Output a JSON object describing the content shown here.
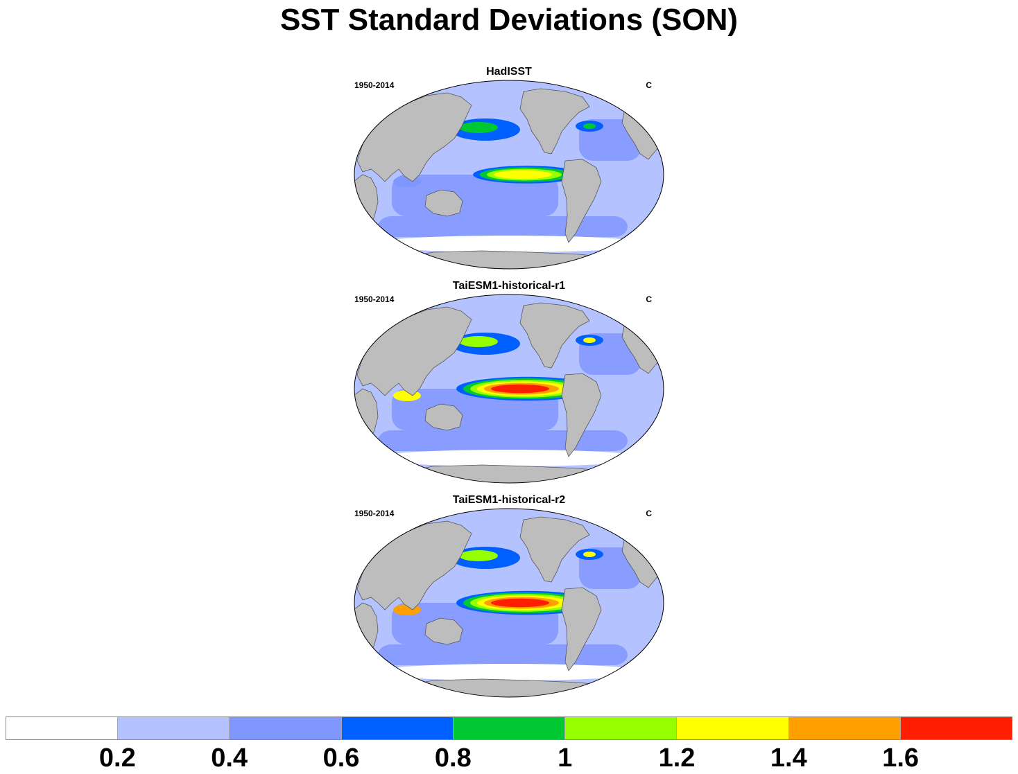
{
  "title": "SST Standard Deviations (SON)",
  "colors": {
    "land": "#bdbdbd",
    "levels": [
      "#ffffff",
      "#b4c3ff",
      "#8096ff",
      "#0060ff",
      "#00c832",
      "#96ff00",
      "#ffff00",
      "#ffa000",
      "#ff1e00"
    ]
  },
  "chart_data": [
    {
      "type": "heatmap",
      "title": "HadISST",
      "left_string": "1950-2014",
      "right_string": "C",
      "projection": "robinson-like global map",
      "features": {
        "pacific_el_nino_max": 1.2,
        "north_pacific_max": 1.0,
        "north_atlantic_max": 1.0,
        "indian_ocean_max": 0.6,
        "southern_ocean_min": 0.2
      }
    },
    {
      "type": "heatmap",
      "title": "TaiESM1-historical-r1",
      "left_string": "1950-2014",
      "right_string": "C",
      "projection": "robinson-like global map",
      "features": {
        "pacific_el_nino_max": 1.6,
        "north_pacific_max": 1.2,
        "north_atlantic_max": 1.4,
        "indian_ocean_max": 1.4,
        "southern_ocean_min": 0.2
      }
    },
    {
      "type": "heatmap",
      "title": "TaiESM1-historical-r2",
      "left_string": "1950-2014",
      "right_string": "C",
      "projection": "robinson-like global map",
      "features": {
        "pacific_el_nino_max": 1.6,
        "north_pacific_max": 1.2,
        "north_atlantic_max": 1.4,
        "indian_ocean_max": 1.6,
        "southern_ocean_min": 0.2
      }
    }
  ],
  "colorbar": {
    "labels": [
      "0.2",
      "0.4",
      "0.6",
      "0.8",
      "1",
      "1.2",
      "1.4",
      "1.6"
    ],
    "levels": [
      0.2,
      0.4,
      0.6,
      0.8,
      1.0,
      1.2,
      1.4,
      1.6
    ]
  }
}
